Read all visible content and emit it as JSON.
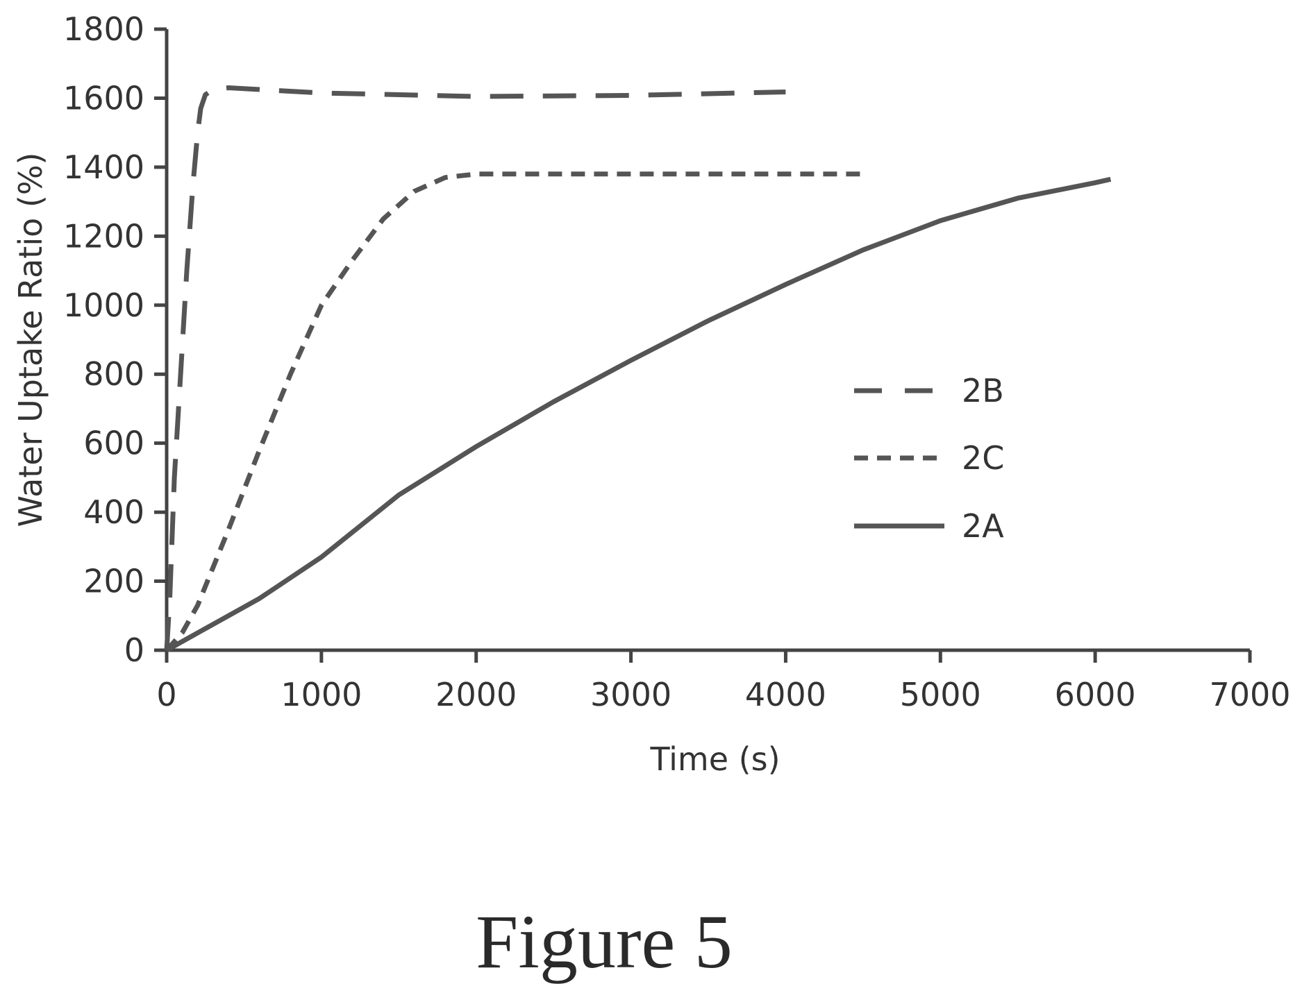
{
  "chart_data": {
    "type": "line",
    "xlabel": "Time (s)",
    "ylabel": "Water Uptake Ratio (%)",
    "xlim": [
      0,
      7000
    ],
    "ylim": [
      0,
      1800
    ],
    "xticks": [
      0,
      1000,
      2000,
      3000,
      4000,
      5000,
      6000,
      7000
    ],
    "yticks": [
      0,
      200,
      400,
      600,
      800,
      1000,
      1200,
      1400,
      1600,
      1800
    ],
    "grid": false,
    "legend_position": "center-right",
    "series": [
      {
        "name": "2B",
        "style": "long-dash",
        "color": "#555555",
        "x": [
          0,
          20,
          50,
          90,
          130,
          170,
          200,
          220,
          250,
          300,
          400,
          1000,
          2000,
          3000,
          4000
        ],
        "y": [
          0,
          150,
          500,
          800,
          1100,
          1350,
          1500,
          1570,
          1610,
          1625,
          1630,
          1615,
          1605,
          1608,
          1618
        ]
      },
      {
        "name": "2C",
        "style": "short-dash",
        "color": "#555555",
        "x": [
          0,
          100,
          200,
          400,
          600,
          800,
          1000,
          1200,
          1400,
          1600,
          1800,
          2000,
          2500,
          3000,
          3500,
          4000,
          4500
        ],
        "y": [
          0,
          50,
          130,
          350,
          580,
          800,
          1000,
          1130,
          1250,
          1330,
          1370,
          1380,
          1380,
          1380,
          1380,
          1380,
          1380
        ]
      },
      {
        "name": "2A",
        "style": "solid",
        "color": "#555555",
        "x": [
          0,
          200,
          400,
          600,
          800,
          1000,
          1500,
          2000,
          2500,
          3000,
          3500,
          4000,
          4500,
          5000,
          5500,
          6000,
          6100
        ],
        "y": [
          0,
          50,
          100,
          150,
          210,
          270,
          450,
          590,
          720,
          840,
          955,
          1060,
          1160,
          1245,
          1310,
          1355,
          1365
        ]
      }
    ]
  },
  "figure": {
    "caption": "Figure 5"
  }
}
